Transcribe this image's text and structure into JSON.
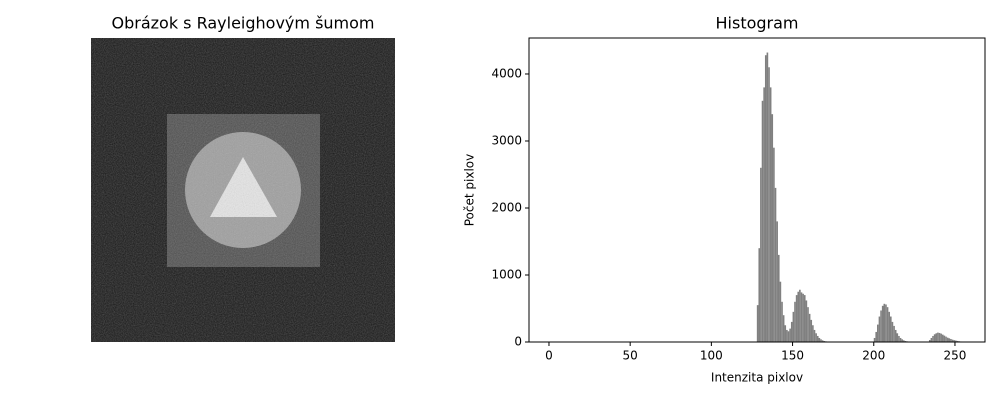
{
  "chart_data": [
    {
      "type": "image",
      "title": "Obrázok s Rayleighovým šumom"
    },
    {
      "type": "histogram",
      "title": "Histogram",
      "x_label": "Intenzita pixlov",
      "y_label": "Počet pixlov",
      "color": "#808080",
      "bins": [
        128,
        129,
        130,
        131,
        132,
        133,
        134,
        135,
        136,
        137,
        138,
        139,
        140,
        141,
        142,
        143,
        144,
        145,
        146,
        147,
        148,
        149,
        150,
        151,
        152,
        153,
        154,
        155,
        156,
        157,
        158,
        159,
        160,
        161,
        162,
        163,
        164,
        165,
        166,
        167,
        168,
        169,
        170,
        171,
        172,
        173,
        174,
        175,
        176,
        177,
        178,
        179,
        180,
        181,
        182,
        183,
        184,
        185,
        186,
        187,
        188,
        189,
        190,
        191,
        192,
        193,
        194,
        195,
        196,
        197,
        198,
        199,
        200,
        201,
        202,
        203,
        204,
        205,
        206,
        207,
        208,
        209,
        210,
        211,
        212,
        213,
        214,
        215,
        216,
        217,
        218,
        219,
        220,
        221,
        222,
        223,
        224,
        225,
        226,
        227,
        228,
        229,
        230,
        231,
        232,
        233,
        234,
        235,
        236,
        237,
        238,
        239,
        240,
        241,
        242,
        243,
        244,
        245,
        246,
        247,
        248,
        249,
        250,
        251,
        252,
        253,
        254,
        255,
        256
      ],
      "values": [
        550,
        1400,
        2600,
        3600,
        3800,
        4280,
        4320,
        4100,
        3800,
        3400,
        2900,
        2300,
        1800,
        1300,
        900,
        600,
        400,
        250,
        180,
        160,
        200,
        300,
        450,
        600,
        700,
        750,
        780,
        740,
        720,
        700,
        620,
        520,
        420,
        330,
        250,
        180,
        130,
        90,
        60,
        40,
        25,
        15,
        10,
        6,
        4,
        2,
        1,
        0,
        0,
        0,
        0,
        0,
        0,
        0,
        0,
        0,
        0,
        0,
        0,
        0,
        0,
        0,
        0,
        0,
        0,
        0,
        0,
        0,
        0,
        0,
        0,
        5,
        60,
        150,
        260,
        380,
        470,
        540,
        570,
        560,
        520,
        450,
        380,
        300,
        240,
        180,
        130,
        90,
        60,
        40,
        25,
        15,
        10,
        6,
        3,
        2,
        1,
        0,
        0,
        0,
        0,
        0,
        0,
        0,
        0,
        5,
        30,
        60,
        90,
        115,
        130,
        140,
        135,
        125,
        110,
        95,
        80,
        65,
        55,
        45,
        35,
        28,
        22,
        16,
        12,
        8,
        5,
        3
      ],
      "xlim": [
        -12.3,
        268.5
      ],
      "xticks": [
        0,
        50,
        100,
        150,
        200,
        250
      ],
      "ylim": [
        0,
        4537
      ],
      "yticks": [
        0,
        1000,
        2000,
        3000,
        4000
      ]
    }
  ]
}
